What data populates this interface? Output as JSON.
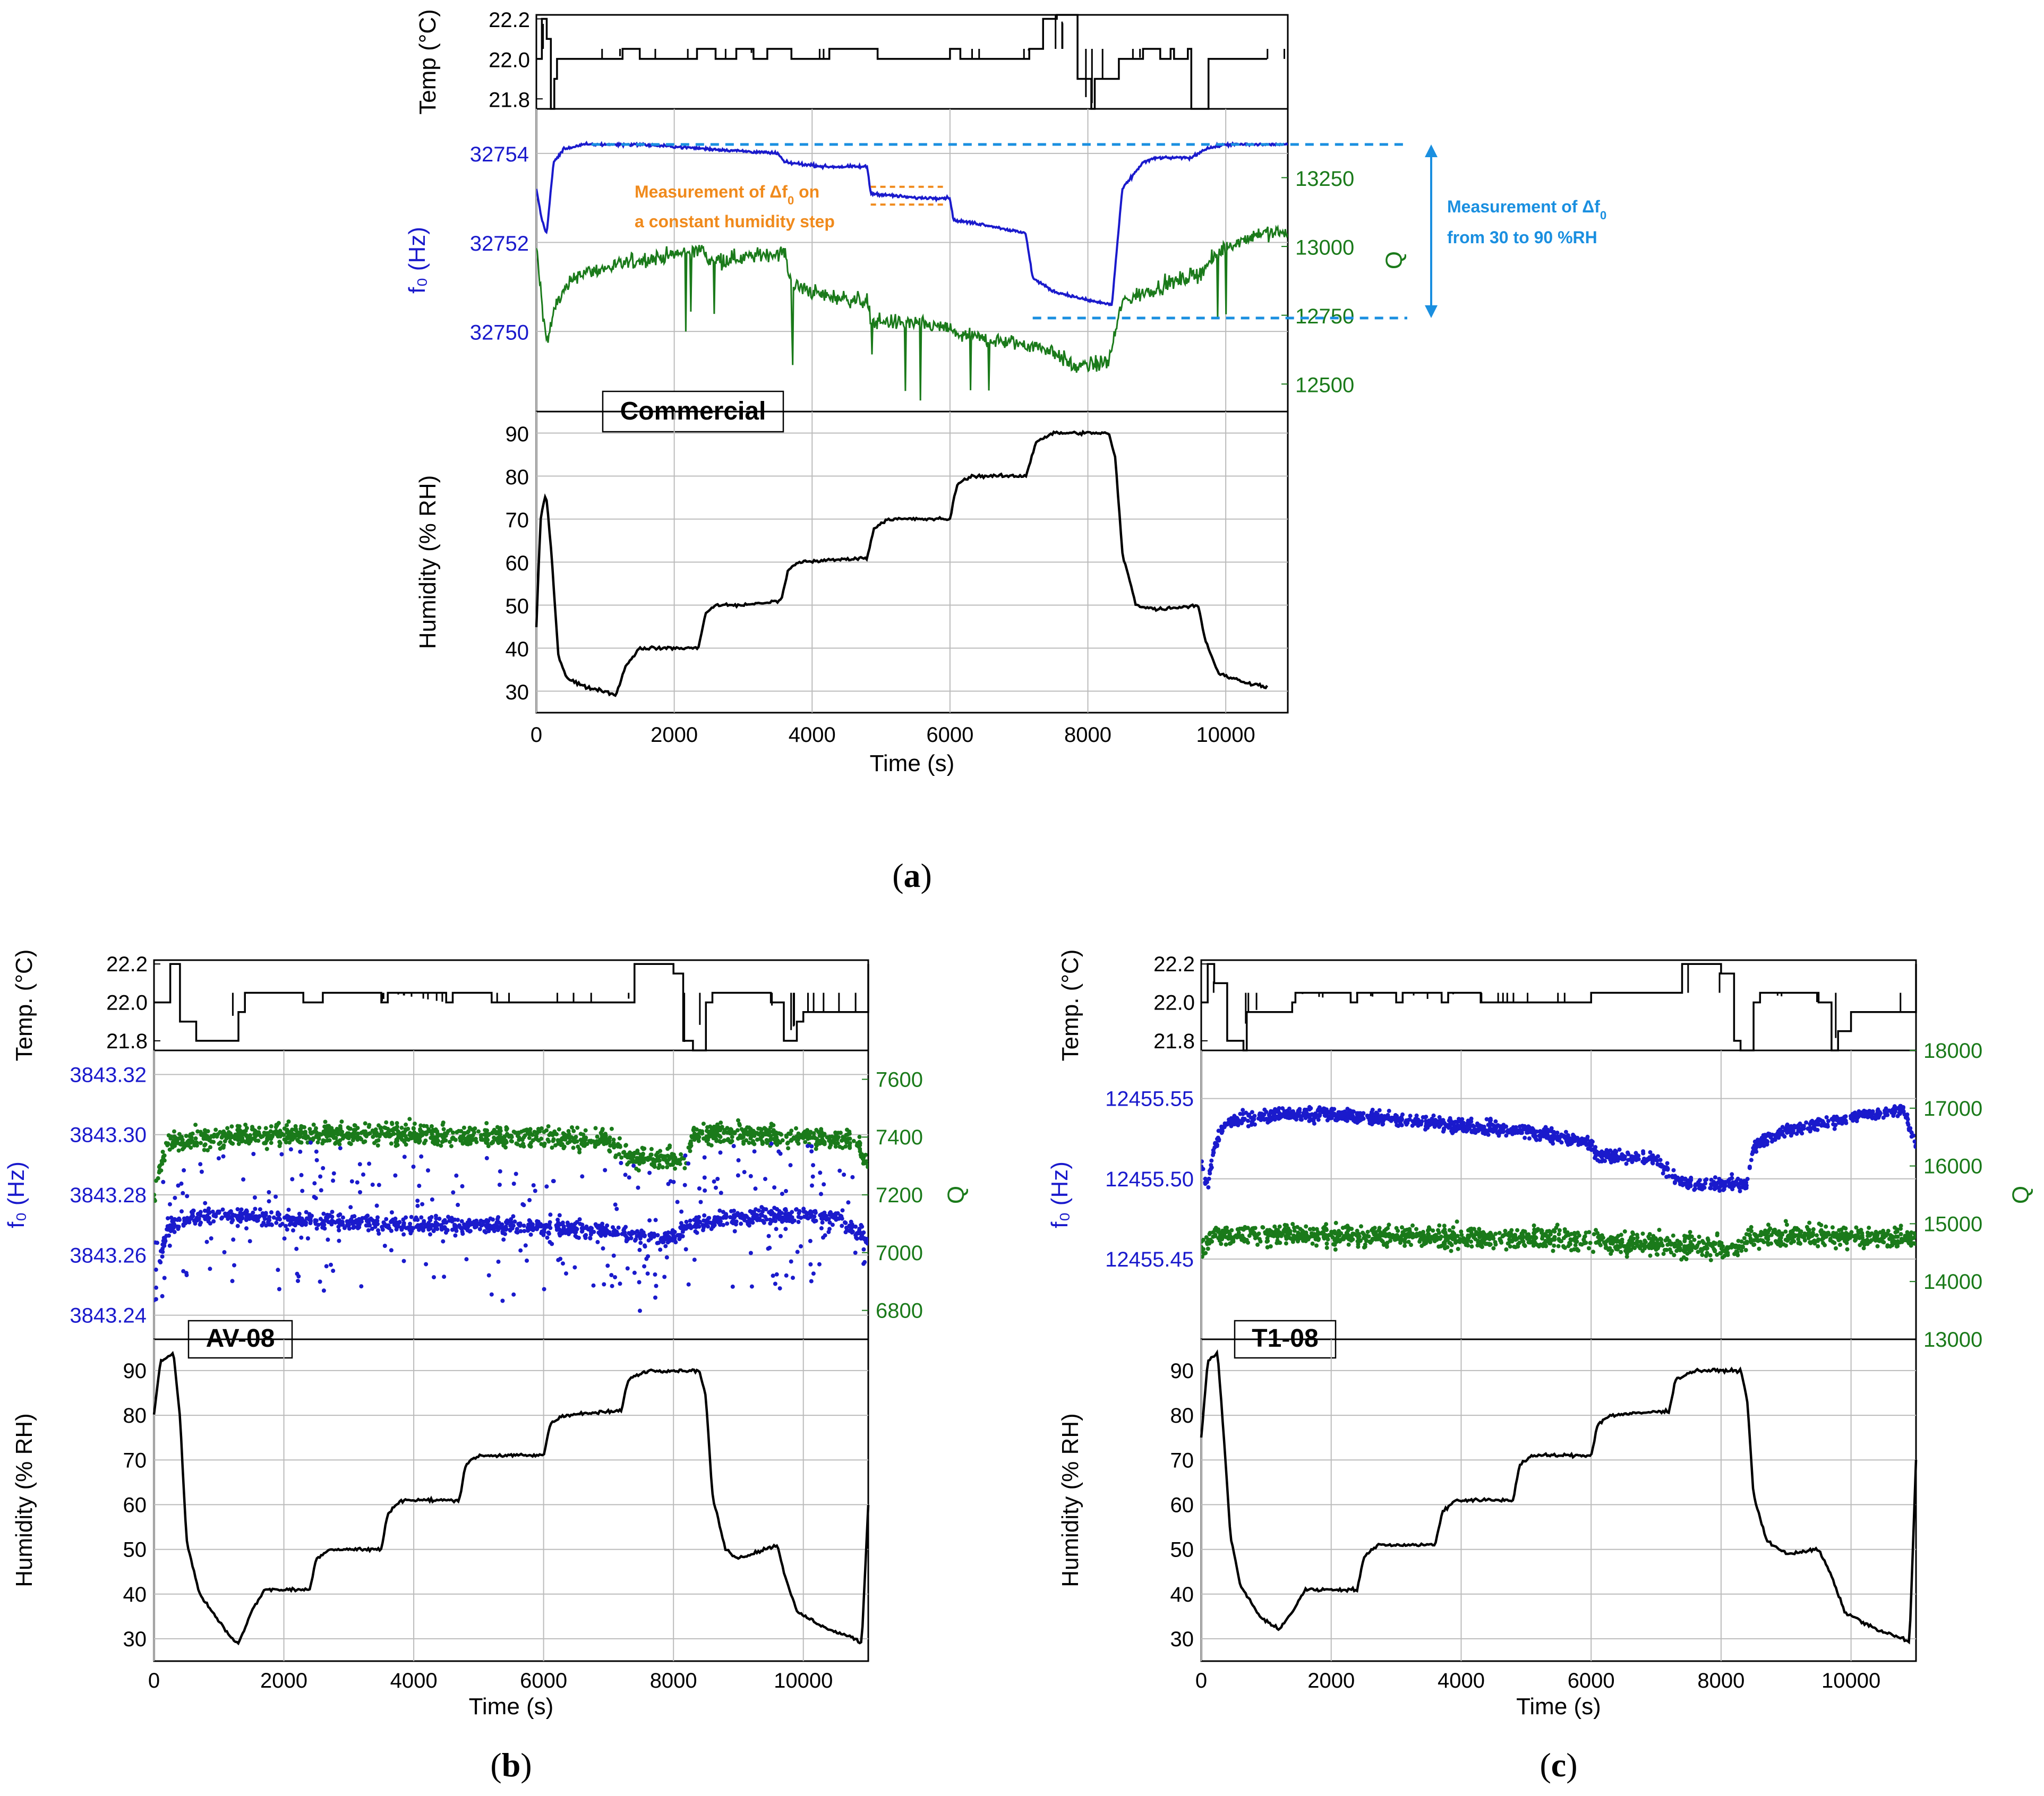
{
  "colors": {
    "f0": "#1a1acc",
    "q": "#1a7a1a",
    "temp": "#000000",
    "hum": "#000000",
    "orange": "#f08a1c",
    "dashblue": "#1a8fe0",
    "grid": "#bbbbbb"
  },
  "chart_data": [
    {
      "id": "a",
      "type": "line",
      "sublabel": "a",
      "sample_label": "Commercial",
      "time_axis": {
        "label": "Time (s)",
        "range": [
          0,
          10900
        ],
        "ticks": [
          0,
          2000,
          4000,
          6000,
          8000,
          10000
        ]
      },
      "temperature": {
        "ylabel": "Temp (°C)",
        "ylim": [
          21.75,
          22.22
        ],
        "ticks": [
          "21.8",
          "22.0",
          "22.2"
        ],
        "tick_values": [
          21.8,
          22.0,
          22.2
        ],
        "x": [
          0,
          80,
          150,
          210,
          260,
          300,
          600,
          1200,
          1250,
          1450,
          1500,
          2300,
          2330,
          2550,
          2600,
          2850,
          2900,
          3100,
          3150,
          3300,
          3350,
          3650,
          3700,
          4200,
          4250,
          4900,
          4950,
          5950,
          6000,
          6100,
          6150,
          7100,
          7150,
          7300,
          7350,
          7550,
          7600,
          7850,
          8050,
          8100,
          8400,
          8450,
          8750,
          8800,
          9000,
          9050,
          9200,
          9250,
          9450,
          9500,
          9700,
          9750,
          10600
        ],
        "y": [
          22.0,
          22.2,
          22.1,
          21.75,
          21.9,
          22.0,
          22.0,
          22.0,
          22.05,
          22.05,
          22.0,
          22.0,
          22.05,
          22.05,
          22.0,
          22.0,
          22.05,
          22.05,
          22.0,
          22.0,
          22.05,
          22.05,
          22.0,
          22.0,
          22.05,
          22.05,
          22.0,
          22.0,
          22.05,
          22.05,
          22.0,
          22.0,
          22.05,
          22.05,
          22.2,
          22.22,
          22.22,
          21.9,
          21.75,
          21.9,
          21.9,
          22.0,
          22.0,
          22.05,
          22.05,
          22.0,
          22.05,
          22.0,
          22.05,
          21.75,
          21.75,
          22.0,
          22.0
        ]
      },
      "f0": {
        "ylabel": "f₀ (Hz)",
        "ylim": [
          32748.2,
          32755.0
        ],
        "ticks": [
          "32750",
          "32752",
          "32754"
        ],
        "tick_values": [
          32750,
          32752,
          32754
        ],
        "x": [
          0,
          80,
          150,
          250,
          400,
          700,
          1500,
          2500,
          3500,
          3600,
          4200,
          4800,
          4850,
          5500,
          6000,
          6050,
          6500,
          7100,
          7200,
          7500,
          8000,
          8350,
          8400,
          8500,
          8800,
          9000,
          9500,
          9700,
          10000,
          10900
        ],
        "y": [
          32753.2,
          32752.5,
          32752.2,
          32753.8,
          32754.1,
          32754.2,
          32754.2,
          32754.1,
          32754.0,
          32753.8,
          32753.7,
          32753.7,
          32753.1,
          32753.0,
          32753.0,
          32752.5,
          32752.4,
          32752.2,
          32751.2,
          32750.9,
          32750.7,
          32750.6,
          32751.5,
          32753.2,
          32753.8,
          32753.9,
          32753.9,
          32754.1,
          32754.2,
          32754.2
        ]
      },
      "q": {
        "ylabel": "Q",
        "ylim": [
          12400,
          13500
        ],
        "ticks": [
          "12500",
          "12750",
          "13000",
          "13250"
        ],
        "tick_values": [
          12500,
          12750,
          13000,
          13250
        ],
        "x": [
          0,
          80,
          150,
          300,
          600,
          1000,
          1500,
          2000,
          2400,
          2500,
          3000,
          3600,
          3700,
          4200,
          4800,
          4850,
          5500,
          6000,
          6100,
          6600,
          7200,
          7500,
          7800,
          8300,
          8500,
          9000,
          9600,
          10000,
          10500,
          10900
        ],
        "y": [
          13000,
          12800,
          12650,
          12800,
          12900,
          12920,
          12950,
          12970,
          12990,
          12950,
          12960,
          12980,
          12860,
          12820,
          12800,
          12730,
          12720,
          12700,
          12680,
          12660,
          12640,
          12620,
          12560,
          12580,
          12800,
          12850,
          12900,
          13000,
          13050,
          13050
        ]
      },
      "humidity": {
        "ylabel": "Humidity (% RH)",
        "ylim": [
          25,
          95
        ],
        "ticks": [
          "30",
          "40",
          "50",
          "60",
          "70",
          "80",
          "90"
        ],
        "tick_values": [
          30,
          40,
          50,
          60,
          70,
          80,
          90
        ],
        "x": [
          0,
          60,
          140,
          220,
          320,
          450,
          700,
          1000,
          1150,
          1300,
          1500,
          1800,
          2350,
          2450,
          2600,
          3000,
          3550,
          3650,
          3800,
          4800,
          4900,
          5100,
          6000,
          6100,
          6300,
          7100,
          7250,
          7500,
          8300,
          8400,
          8500,
          8700,
          9000,
          9600,
          9700,
          9900,
          10300,
          10600
        ],
        "y": [
          45,
          70,
          76,
          62,
          38,
          33,
          31,
          30,
          29,
          36,
          40,
          40,
          40,
          48,
          50,
          50,
          51,
          58,
          60,
          61,
          68,
          70,
          70,
          78,
          80,
          80,
          88,
          90,
          90,
          84,
          62,
          50,
          49,
          50,
          42,
          34,
          32,
          31
        ]
      },
      "annotations": [
        {
          "text_line1": "Measurement of Δf",
          "sub": "0",
          "text_line1b": " on",
          "text_line2": "a constant humidity step"
        },
        {
          "text_line1": "Measurement of Δf",
          "sub": "0",
          "text_line2": "from 30 to 90 %RH"
        }
      ]
    },
    {
      "id": "b",
      "type": "scatter",
      "sublabel": "b",
      "sample_label": "AV-08",
      "time_axis": {
        "label": "Time (s)",
        "range": [
          0,
          11000
        ],
        "ticks": [
          0,
          2000,
          4000,
          6000,
          8000,
          10000
        ]
      },
      "temperature": {
        "ylabel": "Temp. (°C)",
        "ylim": [
          21.75,
          22.22
        ],
        "ticks": [
          "21.8",
          "22.0",
          "22.2"
        ],
        "tick_values": [
          21.8,
          22.0,
          22.2
        ],
        "x": [
          0,
          250,
          300,
          400,
          650,
          1300,
          1400,
          2200,
          2300,
          2500,
          2600,
          3500,
          3600,
          4500,
          4600,
          5200,
          5300,
          7300,
          7400,
          7800,
          8000,
          8150,
          8300,
          8500,
          8600,
          9500,
          9700,
          9900,
          10000,
          10900,
          11000
        ],
        "y": [
          22.0,
          22.2,
          22.2,
          21.9,
          21.8,
          21.95,
          22.05,
          22.05,
          22.0,
          22.0,
          22.05,
          22.0,
          22.05,
          22.0,
          22.05,
          22.0,
          22.0,
          22.0,
          22.2,
          22.2,
          22.15,
          21.8,
          21.75,
          22.0,
          22.05,
          22.0,
          21.8,
          21.9,
          21.95,
          21.95,
          22.2
        ]
      },
      "f0": {
        "ylabel": "f₀ (Hz)",
        "ylim": [
          3843.232,
          3843.328
        ],
        "ticks": [
          "3843.24",
          "3843.26",
          "3843.28",
          "3843.30",
          "3843.32"
        ],
        "tick_values": [
          3843.24,
          3843.26,
          3843.28,
          3843.3,
          3843.32
        ],
        "x": [
          0,
          100,
          200,
          400,
          1000,
          2000,
          3000,
          4000,
          5000,
          6000,
          7000,
          7500,
          8000,
          8300,
          8700,
          9500,
          10500,
          11000
        ],
        "y": [
          3843.245,
          3843.26,
          3843.268,
          3843.272,
          3843.273,
          3843.272,
          3843.271,
          3843.27,
          3843.27,
          3843.269,
          3843.268,
          3843.266,
          3843.266,
          3843.27,
          3843.272,
          3843.273,
          3843.273,
          3843.265
        ],
        "noise": 0.0025,
        "outlier_spread": 0.03
      },
      "q": {
        "ylabel": "Q",
        "ylim": [
          6700,
          7700
        ],
        "ticks": [
          "6800",
          "7000",
          "7200",
          "7400",
          "7600"
        ],
        "tick_values": [
          6800,
          7000,
          7200,
          7400,
          7600
        ],
        "x": [
          0,
          100,
          200,
          1000,
          2000,
          4000,
          6000,
          7000,
          7300,
          7800,
          8200,
          8300,
          9000,
          10000,
          10800,
          11000
        ],
        "y": [
          7200,
          7300,
          7380,
          7400,
          7410,
          7410,
          7400,
          7390,
          7330,
          7320,
          7320,
          7410,
          7410,
          7400,
          7390,
          7300
        ],
        "noise": 35
      },
      "humidity": {
        "ylabel": "Humidity (% RH)",
        "ylim": [
          25,
          97
        ],
        "ticks": [
          "30",
          "40",
          "50",
          "60",
          "70",
          "80",
          "90"
        ],
        "tick_values": [
          30,
          40,
          50,
          60,
          70,
          80,
          90
        ],
        "x": [
          0,
          100,
          300,
          400,
          500,
          700,
          1000,
          1200,
          1300,
          1500,
          1700,
          2400,
          2500,
          2700,
          3500,
          3600,
          3800,
          4700,
          4800,
          5000,
          6000,
          6100,
          6300,
          7200,
          7300,
          7600,
          8400,
          8500,
          8600,
          8800,
          9000,
          9600,
          9700,
          9900,
          10400,
          10800,
          10900,
          11000
        ],
        "y": [
          80,
          92,
          94,
          80,
          52,
          40,
          34,
          30,
          29,
          36,
          41,
          41,
          48,
          50,
          50,
          58,
          61,
          61,
          69,
          71,
          71,
          78,
          80,
          81,
          88,
          90,
          90,
          84,
          62,
          50,
          48,
          51,
          45,
          36,
          32,
          30,
          29,
          60
        ]
      }
    },
    {
      "id": "c",
      "type": "scatter",
      "sublabel": "c",
      "sample_label": "T1-08",
      "time_axis": {
        "label": "Time (s)",
        "range": [
          0,
          11000
        ],
        "ticks": [
          0,
          2000,
          4000,
          6000,
          8000,
          10000
        ]
      },
      "temperature": {
        "ylabel": "Temp. (°C)",
        "ylim": [
          21.75,
          22.22
        ],
        "ticks": [
          "21.8",
          "22.0",
          "22.2"
        ],
        "tick_values": [
          21.8,
          22.0,
          22.2
        ],
        "x": [
          0,
          100,
          200,
          400,
          650,
          700,
          1400,
          1450,
          2300,
          2400,
          3000,
          3100,
          3700,
          3800,
          4300,
          4400,
          5200,
          5300,
          5800,
          6000,
          7200,
          7400,
          7800,
          8000,
          8200,
          8300,
          8500,
          8600,
          9500,
          9700,
          9800,
          10000,
          10900,
          11000
        ],
        "y": [
          22.0,
          22.2,
          22.1,
          21.8,
          21.75,
          21.95,
          22.0,
          22.05,
          22.0,
          22.05,
          22.0,
          22.05,
          22.0,
          22.05,
          22.0,
          22.0,
          22.0,
          22.0,
          22.0,
          22.05,
          22.05,
          22.2,
          22.2,
          22.15,
          21.8,
          21.75,
          22.0,
          22.05,
          22.0,
          21.75,
          21.85,
          21.95,
          21.95,
          22.2
        ]
      },
      "f0": {
        "ylabel": "f₀ (Hz)",
        "ylim": [
          12455.4,
          12455.58
        ],
        "ticks": [
          "12455.45",
          "12455.50",
          "12455.55"
        ],
        "tick_values": [
          12455.45,
          12455.5,
          12455.55
        ],
        "x": [
          0,
          100,
          200,
          400,
          1000,
          2000,
          3000,
          4000,
          5000,
          6000,
          6100,
          7000,
          7300,
          7600,
          8400,
          8500,
          9000,
          10000,
          10800,
          11000
        ],
        "y": [
          12455.51,
          12455.495,
          12455.52,
          12455.535,
          12455.54,
          12455.54,
          12455.537,
          12455.533,
          12455.53,
          12455.522,
          12455.515,
          12455.512,
          12455.5,
          12455.496,
          12455.497,
          12455.52,
          12455.53,
          12455.538,
          12455.543,
          12455.52
        ],
        "noise": 0.004
      },
      "q": {
        "ylabel": "Q",
        "ylim": [
          13000,
          18000
        ],
        "ticks": [
          "13000",
          "14000",
          "15000",
          "16000",
          "17000",
          "18000"
        ],
        "tick_values": [
          13000,
          14000,
          15000,
          16000,
          17000,
          18000
        ],
        "x": [
          0,
          200,
          1000,
          3000,
          5000,
          6000,
          7000,
          7500,
          8300,
          8400,
          9000,
          10000,
          11000
        ],
        "y": [
          14600,
          14800,
          14800,
          14780,
          14750,
          14700,
          14650,
          14600,
          14550,
          14750,
          14800,
          14780,
          14750
        ],
        "noise": 180
      },
      "humidity": {
        "ylabel": "Humidity (% RH)",
        "ylim": [
          25,
          97
        ],
        "ticks": [
          "30",
          "40",
          "50",
          "60",
          "70",
          "80",
          "90"
        ],
        "tick_values": [
          30,
          40,
          50,
          60,
          70,
          80,
          90
        ],
        "x": [
          0,
          100,
          250,
          350,
          450,
          600,
          900,
          1100,
          1200,
          1400,
          1600,
          2400,
          2500,
          2700,
          3600,
          3700,
          3900,
          4800,
          4900,
          5100,
          6000,
          6100,
          6300,
          7200,
          7300,
          7600,
          8300,
          8400,
          8500,
          8700,
          9000,
          9500,
          9700,
          9900,
          10400,
          10800,
          10900,
          11000
        ],
        "y": [
          75,
          92,
          94,
          75,
          53,
          42,
          35,
          33,
          32,
          36,
          41,
          41,
          48,
          51,
          51,
          58,
          61,
          61,
          69,
          71,
          71,
          78,
          80,
          81,
          88,
          90,
          90,
          84,
          62,
          52,
          49,
          50,
          44,
          36,
          32,
          30,
          29,
          70
        ]
      }
    }
  ]
}
